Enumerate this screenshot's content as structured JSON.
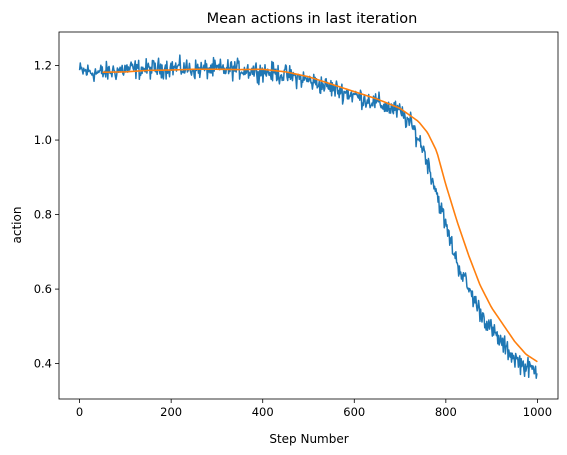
{
  "chart_data": {
    "type": "line",
    "title": "Mean actions in last iteration",
    "xlabel": "Step Number",
    "ylabel": "action",
    "xlim": [
      -45,
      1045
    ],
    "ylim": [
      0.305,
      1.29
    ],
    "xticks": [
      0,
      200,
      400,
      600,
      800,
      1000
    ],
    "xtick_labels": [
      "0",
      "200",
      "400",
      "600",
      "800",
      "1000"
    ],
    "yticks": [
      0.4,
      0.6,
      0.8,
      1.0,
      1.2
    ],
    "ytick_labels": [
      "0.4",
      "0.6",
      "0.8",
      "1.0",
      "1.2"
    ],
    "grid": false,
    "legend": false,
    "series": [
      {
        "color": "#1f77b4",
        "noise": 0.02,
        "x": [
          0,
          50,
          100,
          150,
          200,
          250,
          300,
          350,
          400,
          450,
          500,
          550,
          600,
          650,
          700,
          725,
          750,
          775,
          800,
          825,
          850,
          875,
          900,
          925,
          950,
          975,
          1000
        ],
        "y": [
          1.185,
          1.18,
          1.19,
          1.19,
          1.195,
          1.19,
          1.19,
          1.19,
          1.185,
          1.175,
          1.16,
          1.14,
          1.12,
          1.1,
          1.075,
          1.04,
          0.98,
          0.88,
          0.77,
          0.67,
          0.6,
          0.54,
          0.49,
          0.45,
          0.415,
          0.39,
          0.38
        ]
      },
      {
        "color": "#ff7f0e",
        "x": [
          50,
          100,
          150,
          200,
          250,
          300,
          350,
          400,
          450,
          500,
          550,
          600,
          650,
          700,
          740,
          760,
          780,
          800,
          825,
          850,
          875,
          900,
          925,
          950,
          975,
          1000
        ],
        "y": [
          1.182,
          1.183,
          1.187,
          1.188,
          1.19,
          1.19,
          1.189,
          1.19,
          1.183,
          1.17,
          1.15,
          1.13,
          1.11,
          1.085,
          1.05,
          1.02,
          0.97,
          0.88,
          0.78,
          0.69,
          0.61,
          0.55,
          0.505,
          0.46,
          0.425,
          0.405
        ]
      }
    ]
  }
}
